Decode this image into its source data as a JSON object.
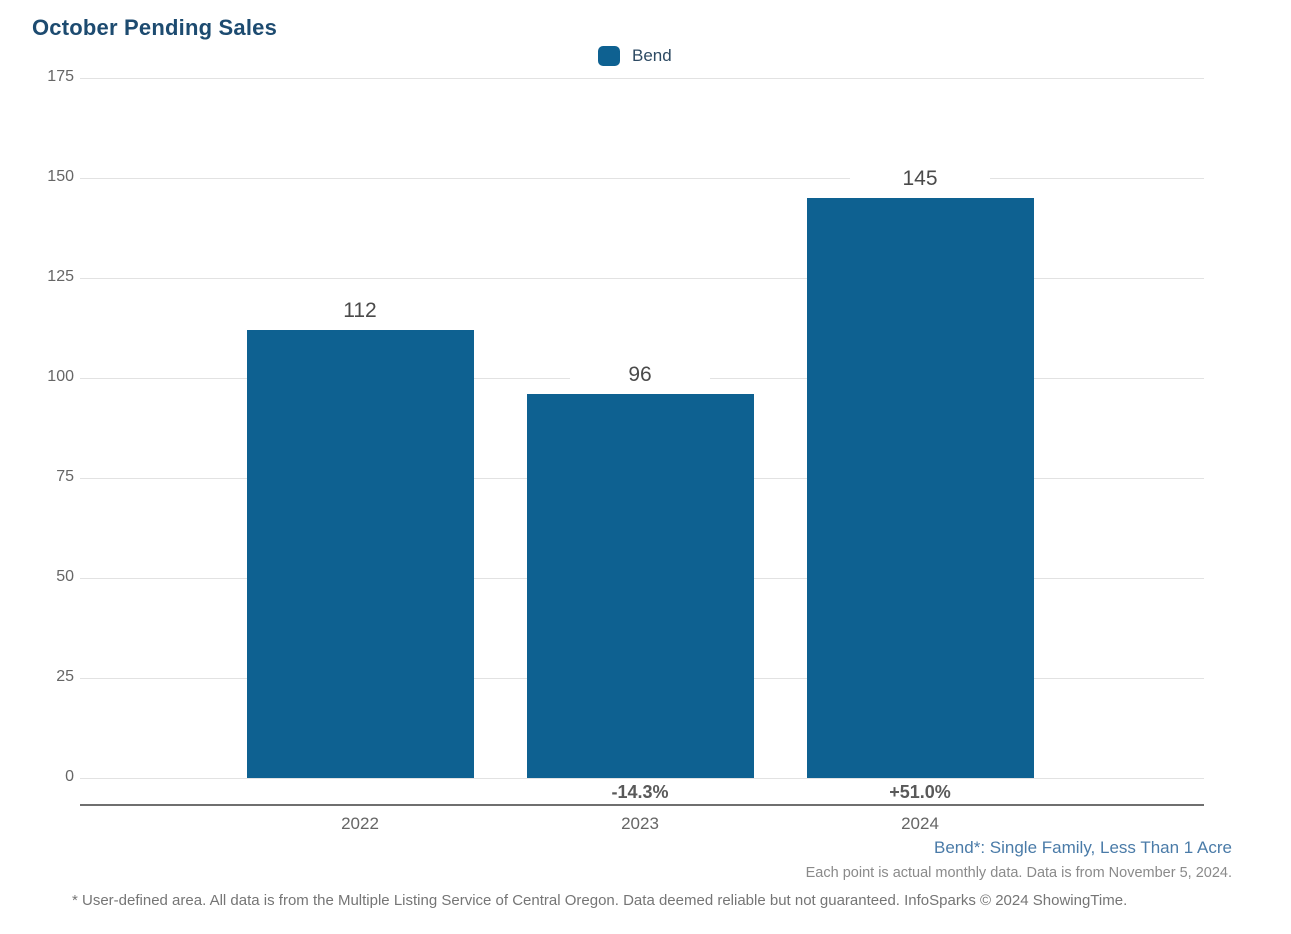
{
  "title": "October Pending Sales",
  "legend": {
    "label": "Bend",
    "swatch_color": "#0E6191"
  },
  "chart_data": {
    "type": "bar",
    "title": "October Pending Sales",
    "categories": [
      "2022",
      "2023",
      "2024"
    ],
    "series": [
      {
        "name": "Bend",
        "values": [
          112,
          96,
          145
        ]
      }
    ],
    "bar_value_labels": [
      "112",
      "96",
      "145"
    ],
    "pct_change_labels": [
      "",
      "-14.3%",
      "+51.0%"
    ],
    "xlabel": "",
    "ylabel": "",
    "ylim": [
      0,
      175
    ],
    "yticks": [
      0,
      25,
      50,
      75,
      100,
      125,
      150,
      175
    ],
    "grid": true,
    "legend_position": "top-center",
    "bar_color": "#0E6191"
  },
  "notes": {
    "series_note": "Bend*: Single Family, Less Than 1 Acre",
    "data_note": "Each point is actual monthly data. Data is from November 5, 2024.",
    "footer": "* User-defined area. All data is from the Multiple Listing Service of Central Oregon. Data deemed reliable but not guaranteed. InfoSparks © 2024 ShowingTime."
  },
  "colors": {
    "bar": "#0E6191",
    "title": "#1D4B70",
    "gridline": "#E2E2E2",
    "axis_line": "#6F6F6F",
    "series_note": "#4A7BA8"
  }
}
